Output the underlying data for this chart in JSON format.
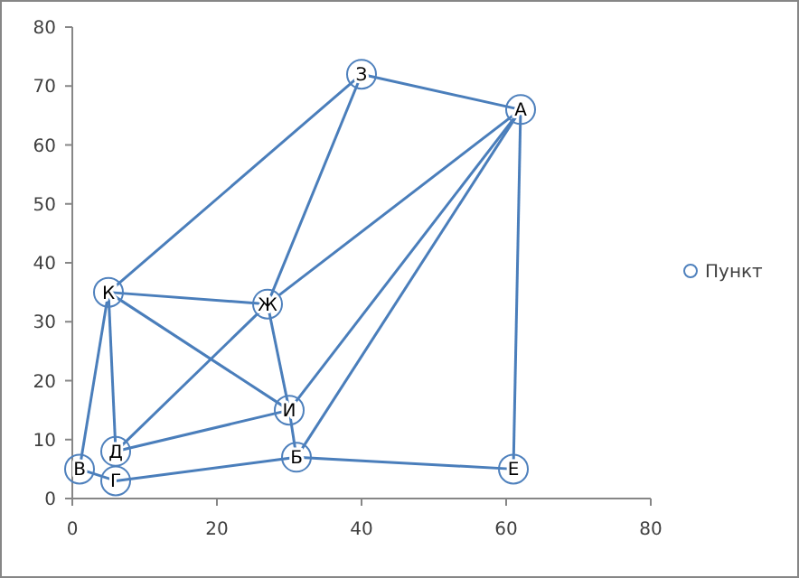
{
  "chart_data": {
    "type": "scatter",
    "xlim": [
      0,
      80
    ],
    "ylim": [
      0,
      80
    ],
    "xticks": [
      0,
      20,
      40,
      60,
      80
    ],
    "yticks": [
      0,
      10,
      20,
      30,
      40,
      50,
      60,
      70,
      80
    ],
    "grid": false,
    "legend": "right",
    "series": [
      {
        "name": "Пункт",
        "marker": "circle",
        "color": "#4f81bd",
        "x": [
          62,
          31,
          1,
          6,
          6,
          61,
          27,
          40,
          30,
          5
        ],
        "values": [
          66,
          7,
          5,
          3,
          8,
          5,
          33,
          72,
          15,
          35
        ]
      },
      {
        "type": "line",
        "color": "#4a7ebb",
        "x": [
          40,
          62
        ],
        "values": [
          72,
          66
        ]
      },
      {
        "type": "line",
        "color": "#4a7ebb",
        "x": [
          40,
          5
        ],
        "values": [
          72,
          35
        ]
      },
      {
        "type": "line",
        "color": "#4a7ebb",
        "x": [
          40,
          27
        ],
        "values": [
          72,
          33
        ]
      },
      {
        "type": "line",
        "color": "#4a7ebb",
        "x": [
          62,
          27
        ],
        "values": [
          66,
          33
        ]
      },
      {
        "type": "line",
        "color": "#4a7ebb",
        "x": [
          62,
          30
        ],
        "values": [
          66,
          15
        ]
      },
      {
        "type": "line",
        "color": "#4a7ebb",
        "x": [
          62,
          31
        ],
        "values": [
          66,
          7
        ]
      },
      {
        "type": "line",
        "color": "#4a7ebb",
        "x": [
          62,
          61
        ],
        "values": [
          66,
          5
        ]
      },
      {
        "type": "line",
        "color": "#4a7ebb",
        "x": [
          5,
          27
        ],
        "values": [
          35,
          33
        ]
      },
      {
        "type": "line",
        "color": "#4a7ebb",
        "x": [
          5,
          30
        ],
        "values": [
          35,
          15
        ]
      },
      {
        "type": "line",
        "color": "#4a7ebb",
        "x": [
          5,
          6
        ],
        "values": [
          35,
          8
        ]
      },
      {
        "type": "line",
        "color": "#4a7ebb",
        "x": [
          5,
          1
        ],
        "values": [
          35,
          5
        ]
      },
      {
        "type": "line",
        "color": "#4a7ebb",
        "x": [
          27,
          6
        ],
        "values": [
          33,
          8
        ]
      },
      {
        "type": "line",
        "color": "#4a7ebb",
        "x": [
          27,
          30
        ],
        "values": [
          33,
          15
        ]
      },
      {
        "type": "line",
        "color": "#4a7ebb",
        "x": [
          6,
          30
        ],
        "values": [
          8,
          15
        ]
      },
      {
        "type": "line",
        "color": "#4a7ebb",
        "x": [
          30,
          31
        ],
        "values": [
          15,
          7
        ]
      },
      {
        "type": "line",
        "color": "#4a7ebb",
        "x": [
          6,
          31
        ],
        "values": [
          3,
          7
        ]
      },
      {
        "type": "line",
        "color": "#4a7ebb",
        "x": [
          31,
          61
        ],
        "values": [
          7,
          5
        ]
      },
      {
        "type": "line",
        "color": "#4a7ebb",
        "x": [
          1,
          6
        ],
        "values": [
          5,
          3
        ]
      }
    ],
    "annotations": [
      {
        "text": "А",
        "x": 62,
        "y": 66
      },
      {
        "text": "Б",
        "x": 31,
        "y": 7
      },
      {
        "text": "В",
        "x": 1,
        "y": 5
      },
      {
        "text": "Г",
        "x": 6,
        "y": 3
      },
      {
        "text": "Д",
        "x": 6,
        "y": 8
      },
      {
        "text": "Е",
        "x": 61,
        "y": 5
      },
      {
        "text": "Ж",
        "x": 27,
        "y": 33
      },
      {
        "text": "З",
        "x": 40,
        "y": 72
      },
      {
        "text": "И",
        "x": 30,
        "y": 15
      },
      {
        "text": "К",
        "x": 5,
        "y": 35
      }
    ]
  }
}
